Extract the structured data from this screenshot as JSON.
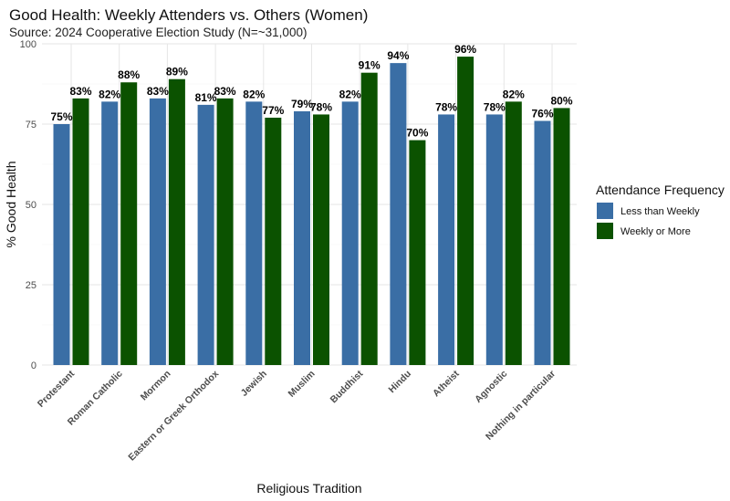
{
  "chart_data": {
    "type": "bar",
    "title": "Good Health: Weekly Attenders vs. Others (Women)",
    "subtitle": "Source: 2024 Cooperative Election Study (N=~31,000)",
    "xlabel": "Religious Tradition",
    "ylabel": "% Good Health",
    "ylim": [
      0,
      100
    ],
    "yticks": [
      0,
      25,
      50,
      75,
      100
    ],
    "grid": true,
    "categories": [
      "Protestant",
      "Roman Catholic",
      "Mormon",
      "Eastern or Greek Orthodox",
      "Jewish",
      "Muslim",
      "Buddhist",
      "Hindu",
      "Atheist",
      "Agnostic",
      "Nothing in particular"
    ],
    "series": [
      {
        "name": "Less than Weekly",
        "color": "#3A6EA5",
        "values": [
          75,
          82,
          83,
          81,
          82,
          79,
          82,
          94,
          78,
          78,
          76
        ]
      },
      {
        "name": "Weekly or More",
        "color": "#0B5200",
        "values": [
          83,
          88,
          89,
          83,
          77,
          78,
          91,
          70,
          96,
          82,
          80
        ]
      }
    ],
    "label_suffix": "%",
    "legend_title": "Attendance Frequency",
    "legend_position": "right"
  }
}
